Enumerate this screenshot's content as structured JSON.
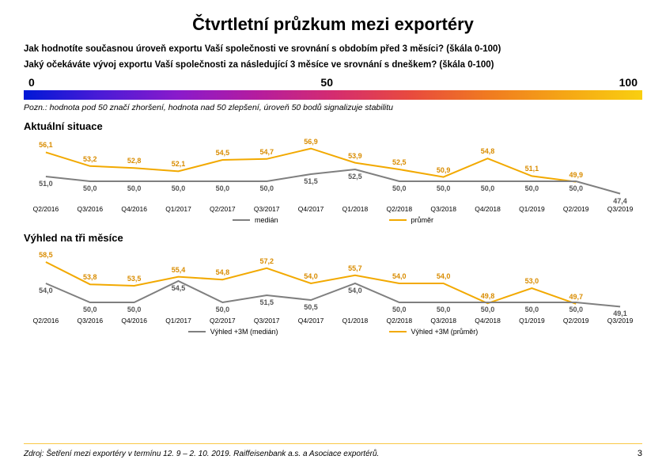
{
  "title": "Čtvrtletní průzkum mezi exportéry",
  "q1": "Jak hodnotíte současnou úroveň exportu Vaší společnosti ve srovnání s obdobím před 3 měsíci? (škála 0-100)",
  "q2": "Jaký očekáváte vývoj exportu Vaší společnosti za následující 3 měsíce ve srovnání s dneškem? (škála 0-100)",
  "scale": {
    "min": "0",
    "mid": "50",
    "max": "100",
    "gradient_colors": [
      "#0018d6",
      "#4b1bd6",
      "#8a1acb",
      "#b41c9f",
      "#d42c70",
      "#e84a3e",
      "#f07a20",
      "#f5a615",
      "#f9cf10"
    ]
  },
  "note": "Pozn.: hodnota pod 50 značí zhoršení, hodnota nad 50 zlepšení, úroveň 50 bodů signalizuje stabilitu",
  "section1_title": "Aktuální situace",
  "section2_title": "Výhled na tři měsíce",
  "periods": [
    "Q2/2016",
    "Q3/2016",
    "Q4/2016",
    "Q1/2017",
    "Q2/2017",
    "Q3/2017",
    "Q4/2017",
    "Q1/2018",
    "Q2/2018",
    "Q3/2018",
    "Q4/2018",
    "Q1/2019",
    "Q2/2019",
    "Q3/2019"
  ],
  "chart1": {
    "median": {
      "values": [
        51.0,
        50.0,
        50.0,
        50.0,
        50.0,
        50.0,
        51.5,
        52.5,
        50.0,
        50.0,
        50.0,
        50.0,
        50.0,
        47.4
      ],
      "labels": [
        "51,0",
        "50,0",
        "50,0",
        "50,0",
        "50,0",
        "50,0",
        "51,5",
        "52,5",
        "50,0",
        "50,0",
        "50,0",
        "50,0",
        "50,0",
        "47,4"
      ],
      "color": "#7f7f7f",
      "width": 2
    },
    "avg": {
      "values": [
        56.1,
        53.2,
        52.8,
        52.1,
        54.5,
        54.7,
        56.9,
        53.9,
        52.5,
        50.9,
        54.8,
        51.1,
        49.9,
        null
      ],
      "labels": [
        "56,1",
        "53,2",
        "52,8",
        "52,1",
        "54,5",
        "54,7",
        "56,9",
        "53,9",
        "52,5",
        "50,9",
        "54,8",
        "51,1",
        "49,9",
        ""
      ],
      "color": "#f2a900",
      "width": 2
    },
    "yrange": [
      46,
      58
    ]
  },
  "chart2": {
    "median": {
      "values": [
        54.0,
        50.0,
        50.0,
        54.5,
        50.0,
        51.5,
        50.5,
        54.0,
        50.0,
        50.0,
        50.0,
        50.0,
        50.0,
        49.1
      ],
      "labels": [
        "54,0",
        "50,0",
        "50,0",
        "54,5",
        "50,0",
        "51,5",
        "50,5",
        "54,0",
        "50,0",
        "50,0",
        "50,0",
        "50,0",
        "50,0",
        "49,1"
      ],
      "color": "#7f7f7f",
      "width": 2
    },
    "avg": {
      "values": [
        58.5,
        53.8,
        53.5,
        55.4,
        54.8,
        57.2,
        54.0,
        55.7,
        54.0,
        54.0,
        49.8,
        53.0,
        49.7,
        null
      ],
      "labels": [
        "58,5",
        "53,8",
        "53,5",
        "55,4",
        "54,8",
        "57,2",
        "54,0",
        "55,7",
        "54,0",
        "54,0",
        "49,8",
        "53,0",
        "49,7",
        ""
      ],
      "color": "#f2a900",
      "width": 2
    },
    "yrange": [
      48,
      60
    ]
  },
  "legend1": {
    "a": "medián",
    "b": "průměr"
  },
  "legend2": {
    "a": "Výhled +3M (medián)",
    "b": "Výhled +3M (průměr)"
  },
  "colors": {
    "median": "#7f7f7f",
    "avg": "#f2a900",
    "avg_label": "#d98c00",
    "label_gray": "#555555",
    "label_orange": "#d98c00"
  },
  "source": "Zdroj: Šetření mezi exportéry v termínu 12. 9 – 2. 10. 2019. Raiffeisenbank a.s. a  Asociace exportérů.",
  "pagenum": "3"
}
